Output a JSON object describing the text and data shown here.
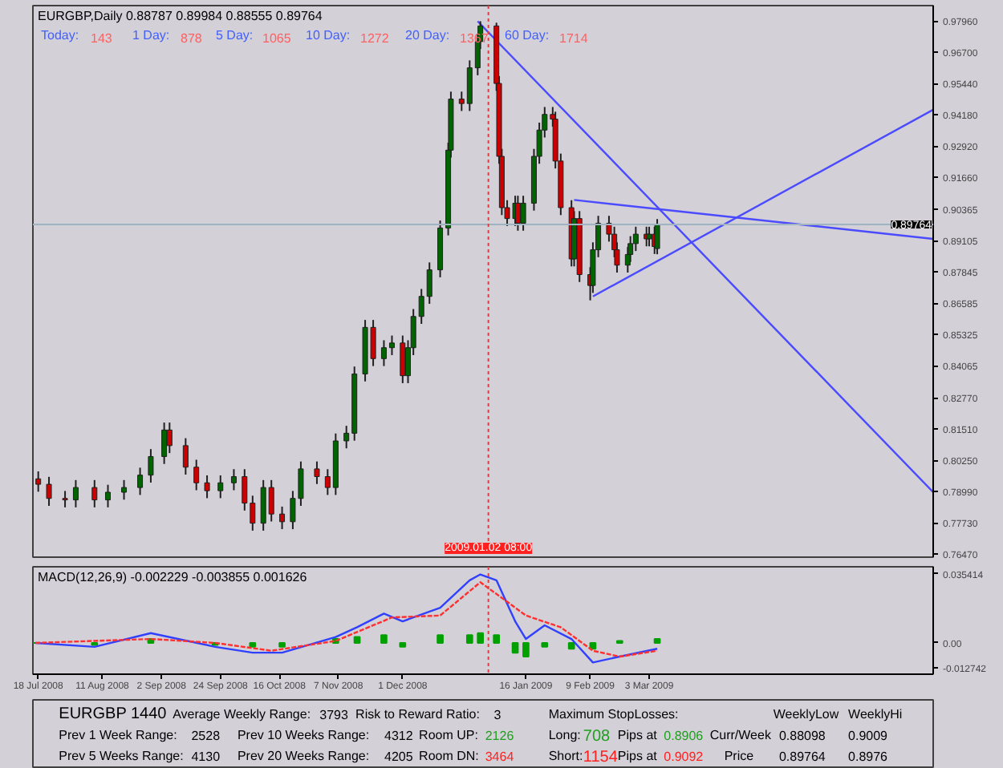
{
  "chart_data": [
    {
      "type": "candlestick",
      "title": "EURGBP,Daily 0.88787 0.89984 0.88555 0.89764",
      "annotations": [
        "Today:",
        "143",
        "1 Day:",
        "878",
        "5 Day:",
        "1065",
        "10 Day:",
        "1272",
        "20 Day:",
        "1367",
        "60 Day:",
        "1714"
      ],
      "x": [
        "2008-07-18",
        "2008-07-22",
        "2008-07-28",
        "2008-08-01",
        "2008-08-08",
        "2008-08-13",
        "2008-08-19",
        "2008-08-25",
        "2008-08-29",
        "2008-09-03",
        "2008-09-05",
        "2008-09-11",
        "2008-09-15",
        "2008-09-19",
        "2008-09-24",
        "2008-09-29",
        "2008-10-03",
        "2008-10-06",
        "2008-10-10",
        "2008-10-13",
        "2008-10-17",
        "2008-10-21",
        "2008-10-24",
        "2008-10-30",
        "2008-11-03",
        "2008-11-06",
        "2008-11-10",
        "2008-11-13",
        "2008-11-17",
        "2008-11-20",
        "2008-11-24",
        "2008-11-27",
        "2008-12-01",
        "2008-12-03",
        "2008-12-05",
        "2008-12-08",
        "2008-12-11",
        "2008-12-15",
        "2008-12-18",
        "2008-12-19",
        "2008-12-23",
        "2008-12-26",
        "2008-12-29",
        "2008-12-30",
        "2009-01-05",
        "2009-01-06",
        "2009-01-07",
        "2009-01-09",
        "2009-01-12",
        "2009-01-13",
        "2009-01-15",
        "2009-01-19",
        "2009-01-21",
        "2009-01-23",
        "2009-01-26",
        "2009-01-27",
        "2009-01-29",
        "2009-02-02",
        "2009-02-03",
        "2009-02-05",
        "2009-02-09",
        "2009-02-10",
        "2009-02-12",
        "2009-02-16",
        "2009-02-18",
        "2009-02-19",
        "2009-02-23",
        "2009-02-24",
        "2009-02-26",
        "2009-03-02",
        "2009-03-03",
        "2009-03-05",
        "2009-03-06"
      ],
      "ohlc": [
        [
          0.795,
          0.798,
          0.7898,
          0.7928
        ],
        [
          0.7928,
          0.7958,
          0.7841,
          0.7871
        ],
        [
          0.7871,
          0.7901,
          0.7835,
          0.7865
        ],
        [
          0.7865,
          0.7945,
          0.7835,
          0.7915
        ],
        [
          0.7915,
          0.7945,
          0.7835,
          0.7865
        ],
        [
          0.7865,
          0.7926,
          0.7835,
          0.7896
        ],
        [
          0.7896,
          0.7945,
          0.7866,
          0.7915
        ],
        [
          0.7915,
          0.7995,
          0.7885,
          0.7965
        ],
        [
          0.7965,
          0.807,
          0.7935,
          0.804
        ],
        [
          0.804,
          0.8177,
          0.801,
          0.8147
        ],
        [
          0.8147,
          0.8177,
          0.8054,
          0.8084
        ],
        [
          0.8084,
          0.8114,
          0.7967,
          0.7997
        ],
        [
          0.7997,
          0.8027,
          0.7904,
          0.7934
        ],
        [
          0.7934,
          0.7964,
          0.7872,
          0.7902
        ],
        [
          0.7902,
          0.7964,
          0.7872,
          0.7934
        ],
        [
          0.7934,
          0.7989,
          0.7904,
          0.7959
        ],
        [
          0.7959,
          0.7989,
          0.7822,
          0.7852
        ],
        [
          0.7852,
          0.7882,
          0.7741,
          0.7771
        ],
        [
          0.7771,
          0.7945,
          0.7741,
          0.7915
        ],
        [
          0.7915,
          0.7945,
          0.7778,
          0.7808
        ],
        [
          0.7808,
          0.7838,
          0.7747,
          0.7777
        ],
        [
          0.7777,
          0.7901,
          0.7747,
          0.7871
        ],
        [
          0.7871,
          0.802,
          0.7841,
          0.799
        ],
        [
          0.799,
          0.802,
          0.7929,
          0.7959
        ],
        [
          0.7959,
          0.7989,
          0.7885,
          0.7915
        ],
        [
          0.7915,
          0.8133,
          0.7885,
          0.8103
        ],
        [
          0.8103,
          0.8164,
          0.8073,
          0.8134
        ],
        [
          0.8134,
          0.8403,
          0.8104,
          0.8373
        ],
        [
          0.8373,
          0.8591,
          0.8343,
          0.8561
        ],
        [
          0.8561,
          0.8591,
          0.8405,
          0.8435
        ],
        [
          0.8435,
          0.8509,
          0.8405,
          0.8479
        ],
        [
          0.8479,
          0.8528,
          0.8449,
          0.8498
        ],
        [
          0.8498,
          0.8528,
          0.8336,
          0.8366
        ],
        [
          0.8366,
          0.8509,
          0.8336,
          0.8479
        ],
        [
          0.8479,
          0.8635,
          0.8449,
          0.8605
        ],
        [
          0.8605,
          0.8716,
          0.8575,
          0.8686
        ],
        [
          0.8686,
          0.8823,
          0.8656,
          0.8793
        ],
        [
          0.8793,
          0.8992,
          0.8763,
          0.8962
        ],
        [
          0.8962,
          0.9306,
          0.8932,
          0.9276
        ],
        [
          0.9276,
          0.9512,
          0.9246,
          0.9482
        ],
        [
          0.9482,
          0.9512,
          0.9434,
          0.9464
        ],
        [
          0.9464,
          0.9638,
          0.9434,
          0.9608
        ],
        [
          0.9608,
          0.9744,
          0.9578,
          0.9714
        ],
        [
          0.9714,
          0.9796,
          0.9684,
          0.9777
        ],
        [
          0.9777,
          0.979,
          0.9515,
          0.9545
        ],
        [
          0.9545,
          0.9575,
          0.9221,
          0.9251
        ],
        [
          0.9251,
          0.9281,
          0.9014,
          0.9044
        ],
        [
          0.9044,
          0.9074,
          0.897,
          0.9
        ],
        [
          0.9,
          0.9092,
          0.897,
          0.9062
        ],
        [
          0.9062,
          0.9092,
          0.8951,
          0.8981
        ],
        [
          0.8981,
          0.9092,
          0.8951,
          0.9062
        ],
        [
          0.9062,
          0.9281,
          0.9032,
          0.9251
        ],
        [
          0.9251,
          0.9387,
          0.9221,
          0.9357
        ],
        [
          0.9357,
          0.945,
          0.9327,
          0.942
        ],
        [
          0.942,
          0.945,
          0.9371,
          0.9401
        ],
        [
          0.9401,
          0.9431,
          0.9202,
          0.9232
        ],
        [
          0.9232,
          0.9262,
          0.9014,
          0.9044
        ],
        [
          0.9044,
          0.9074,
          0.8807,
          0.8837
        ],
        [
          0.8837,
          0.903,
          0.8807,
          0.9
        ],
        [
          0.9,
          0.903,
          0.8744,
          0.8774
        ],
        [
          0.8774,
          0.8804,
          0.867,
          0.873
        ],
        [
          0.873,
          0.8904,
          0.87,
          0.8874
        ],
        [
          0.8874,
          0.9011,
          0.8844,
          0.8981
        ],
        [
          0.8981,
          0.9011,
          0.8907,
          0.8937
        ],
        [
          0.8937,
          0.8967,
          0.8844,
          0.8874
        ],
        [
          0.8874,
          0.8904,
          0.8782,
          0.8812
        ],
        [
          0.8812,
          0.8885,
          0.8782,
          0.8855
        ],
        [
          0.8855,
          0.8929,
          0.8825,
          0.8899
        ],
        [
          0.8899,
          0.8967,
          0.8869,
          0.8937
        ],
        [
          0.8937,
          0.8967,
          0.8888,
          0.8918
        ],
        [
          0.8918,
          0.8967,
          0.8888,
          0.8937
        ],
        [
          0.8937,
          0.8967,
          0.8857,
          0.8887
        ],
        [
          0.8879,
          0.8998,
          0.8856,
          0.8976
        ]
      ],
      "colors": [
        "#cc0000",
        "#cc0000",
        "#cc0000",
        "#006400",
        "#cc0000",
        "#006400",
        "#006400",
        "#006400",
        "#006400",
        "#006400",
        "#cc0000",
        "#cc0000",
        "#cc0000",
        "#cc0000",
        "#006400",
        "#006400",
        "#cc0000",
        "#cc0000",
        "#006400",
        "#cc0000",
        "#cc0000",
        "#006400",
        "#006400",
        "#cc0000",
        "#cc0000",
        "#006400",
        "#006400",
        "#006400",
        "#006400",
        "#cc0000",
        "#006400",
        "#006400",
        "#cc0000",
        "#006400",
        "#006400",
        "#006400",
        "#006400",
        "#006400",
        "#006400",
        "#006400",
        "#cc0000",
        "#006400",
        "#006400",
        "#006400",
        "#cc0000",
        "#cc0000",
        "#cc0000",
        "#cc0000",
        "#006400",
        "#cc0000",
        "#006400",
        "#006400",
        "#006400",
        "#006400",
        "#cc0000",
        "#cc0000",
        "#cc0000",
        "#cc0000",
        "#006400",
        "#cc0000",
        "#cc0000",
        "#006400",
        "#006400",
        "#cc0000",
        "#cc0000",
        "#cc0000",
        "#006400",
        "#006400",
        "#006400",
        "#cc0000",
        "#006400",
        "#cc0000",
        "#006400"
      ],
      "series": [
        {
          "type": "line",
          "color": "#4a4aff",
          "x": [
            "2008-12-29",
            "2009-06-17"
          ],
          "values": [
            0.9796,
            0.7896
          ]
        },
        {
          "type": "line",
          "color": "#4a4aff",
          "x": [
            "2009-02-03",
            "2009-06-17"
          ],
          "values": [
            0.9075,
            0.8918
          ]
        },
        {
          "type": "line",
          "color": "#4a4aff",
          "x": [
            "2009-02-10",
            "2009-06-17"
          ],
          "values": [
            0.8686,
            0.9439
          ]
        }
      ],
      "ref_lines": [
        {
          "axis": "y",
          "value": 0.89764,
          "label": "0.89764",
          "color": "#9fb3c0"
        },
        {
          "axis": "x",
          "value": "2009-01-02",
          "label": "2009.01.02 08:00",
          "color": "#e04040",
          "line_style": "dotted"
        }
      ],
      "xlim": [
        "2008-07-16",
        "2009-06-17"
      ],
      "ylim": [
        0.7634,
        0.9859
      ],
      "yticks": [
        {
          "value": 0.9796,
          "label": "0.97960"
        },
        {
          "value": 0.967,
          "label": "0.96700"
        },
        {
          "value": 0.9544,
          "label": "0.95440"
        },
        {
          "value": 0.9418,
          "label": "0.94180"
        },
        {
          "value": 0.9292,
          "label": "0.92920"
        },
        {
          "value": 0.9166,
          "label": "0.91660"
        },
        {
          "value": 0.90365,
          "label": "0.90365"
        },
        {
          "value": 0.89105,
          "label": "0.89105"
        },
        {
          "value": 0.87845,
          "label": "0.87845"
        },
        {
          "value": 0.86585,
          "label": "0.86585"
        },
        {
          "value": 0.85325,
          "label": "0.85325"
        },
        {
          "value": 0.84065,
          "label": "0.84065"
        },
        {
          "value": 0.8277,
          "label": "0.82770"
        },
        {
          "value": 0.8151,
          "label": "0.81510"
        },
        {
          "value": 0.8025,
          "label": "0.80250"
        },
        {
          "value": 0.7899,
          "label": "0.78990"
        },
        {
          "value": 0.7773,
          "label": "0.77730"
        },
        {
          "value": 0.7647,
          "label": "0.76470"
        }
      ],
      "tick_labels": "y"
    },
    {
      "type": "line",
      "title": "MACD(12,26,9) -0.002229 -0.003855 0.001626",
      "series": [
        {
          "type": "bar",
          "color": "#00a000",
          "x": [
            "2008-07-17",
            "2008-08-08",
            "2008-08-29",
            "2008-09-22",
            "2008-10-06",
            "2008-10-17",
            "2008-11-06",
            "2008-11-14",
            "2008-11-24",
            "2008-12-01",
            "2008-12-15",
            "2008-12-26",
            "2008-12-30",
            "2009-01-05",
            "2009-01-12",
            "2009-01-16",
            "2009-01-23",
            "2009-02-02",
            "2009-02-10",
            "2009-02-20",
            "2009-03-06"
          ],
          "values": [
            0,
            -0.001,
            0.002,
            -0.001,
            -0.002,
            -0.002,
            0.002,
            0.003,
            0.004,
            -0.002,
            0.004,
            0.004,
            0.005,
            0.004,
            -0.005,
            -0.007,
            -0.002,
            -0.003,
            -0.003,
            0.001,
            0.002
          ]
        },
        {
          "type": "line",
          "color": "#3040ff",
          "x": [
            "2008-07-17",
            "2008-08-08",
            "2008-08-29",
            "2008-09-22",
            "2008-10-06",
            "2008-10-17",
            "2008-11-06",
            "2008-11-14",
            "2008-11-24",
            "2008-12-01",
            "2008-12-15",
            "2008-12-26",
            "2008-12-30",
            "2009-01-05",
            "2009-01-12",
            "2009-01-16",
            "2009-01-23",
            "2009-02-02",
            "2009-02-10",
            "2009-02-20",
            "2009-03-06"
          ],
          "values": [
            0,
            -0.002,
            0.005,
            -0.002,
            -0.005,
            -0.005,
            0.003,
            0.008,
            0.015,
            0.011,
            0.018,
            0.032,
            0.035,
            0.032,
            0.011,
            0.002,
            0.009,
            0.002,
            -0.01,
            -0.007,
            -0.003
          ]
        },
        {
          "type": "line",
          "color": "#ff3030",
          "line_style": "dashed",
          "x": [
            "2008-07-17",
            "2008-08-29",
            "2008-09-22",
            "2008-10-13",
            "2008-11-06",
            "2008-11-27",
            "2008-12-15",
            "2008-12-30",
            "2009-01-16",
            "2009-01-29",
            "2009-02-10",
            "2009-02-20",
            "2009-03-06"
          ],
          "values": [
            0,
            0.002,
            0,
            -0.004,
            0.001,
            0.013,
            0.014,
            0.031,
            0.014,
            0.008,
            -0.004,
            -0.007,
            -0.004
          ]
        }
      ],
      "ref_lines": [
        {
          "axis": "x",
          "value": "2009-01-02",
          "color": "#e04040",
          "line_style": "dotted"
        }
      ],
      "xlim": [
        "2008-07-16",
        "2009-06-17"
      ],
      "ylim": [
        -0.016,
        0.0389
      ],
      "xticks": [
        {
          "value": "2008-07-18",
          "label": "18 Jul 2008"
        },
        {
          "value": "2008-08-11",
          "label": "11 Aug 2008"
        },
        {
          "value": "2008-09-02",
          "label": "2 Sep 2008"
        },
        {
          "value": "2008-09-24",
          "label": "24 Sep 2008"
        },
        {
          "value": "2008-10-16",
          "label": "16 Oct 2008"
        },
        {
          "value": "2008-11-07",
          "label": "7 Nov 2008"
        },
        {
          "value": "2008-12-01",
          "label": "1 Dec 2008"
        },
        {
          "value": "2009-01-16",
          "label": "16 Jan 2009"
        },
        {
          "value": "2009-02-09",
          "label": "9 Feb 2009"
        },
        {
          "value": "2009-03-03",
          "label": "3 Mar 2009"
        }
      ],
      "yticks": [
        {
          "value": 0.035414,
          "label": "0.035414"
        },
        {
          "value": 0,
          "label": "0.00"
        },
        {
          "value": -0.012742,
          "label": "-0.012742"
        }
      ]
    },
    {
      "type": "other",
      "annotations": [
        "EURGBP 1440",
        "Average Weekly Range:",
        "3793",
        "Risk to Reward Ratio:",
        "3",
        "Prev 1 Week Range:",
        "2528",
        "Prev 10 Weeks Range:",
        "4312",
        "Room UP:",
        "2126",
        "Prev 5 Weeks Range:",
        "4130",
        "Prev 20 Weeks Range:",
        "4205",
        "Room DN:",
        "3464",
        "Maximum StopLosses:",
        "WeeklyLow",
        "WeeklyHi",
        "Long:",
        "708",
        "Pips at",
        "0.8906",
        "Curr/Week",
        "0.88098",
        "0.9009",
        "Short:",
        "1154",
        "Pips at",
        "0.9092",
        "Price",
        "0.89764",
        "0.8976"
      ]
    }
  ]
}
